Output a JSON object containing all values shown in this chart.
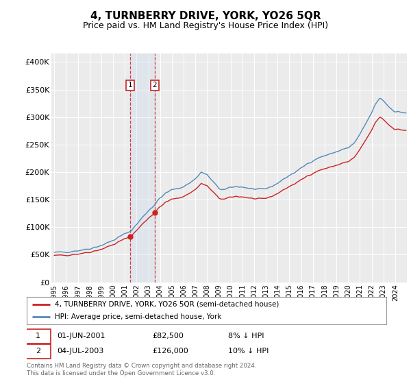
{
  "title": "4, TURNBERRY DRIVE, YORK, YO26 5QR",
  "subtitle": "Price paid vs. HM Land Registry's House Price Index (HPI)",
  "yticks": [
    0,
    50000,
    100000,
    150000,
    200000,
    250000,
    300000,
    350000,
    400000
  ],
  "ytick_labels": [
    "£0",
    "£50K",
    "£100K",
    "£150K",
    "£200K",
    "£250K",
    "£300K",
    "£350K",
    "£400K"
  ],
  "background_color": "#ffffff",
  "plot_bg_color": "#ebebeb",
  "grid_color": "#ffffff",
  "hpi_color": "#5588bb",
  "price_color": "#cc2222",
  "purchase1_date_num": 2001.458,
  "purchase1_price": 82500,
  "purchase2_date_num": 2003.542,
  "purchase2_price": 126000,
  "legend_price_label": "4, TURNBERRY DRIVE, YORK, YO26 5QR (semi-detached house)",
  "legend_hpi_label": "HPI: Average price, semi-detached house, York",
  "footnote": "Contains HM Land Registry data © Crown copyright and database right 2024.\nThis data is licensed under the Open Government Licence v3.0.",
  "title_fontsize": 11,
  "subtitle_fontsize": 9
}
